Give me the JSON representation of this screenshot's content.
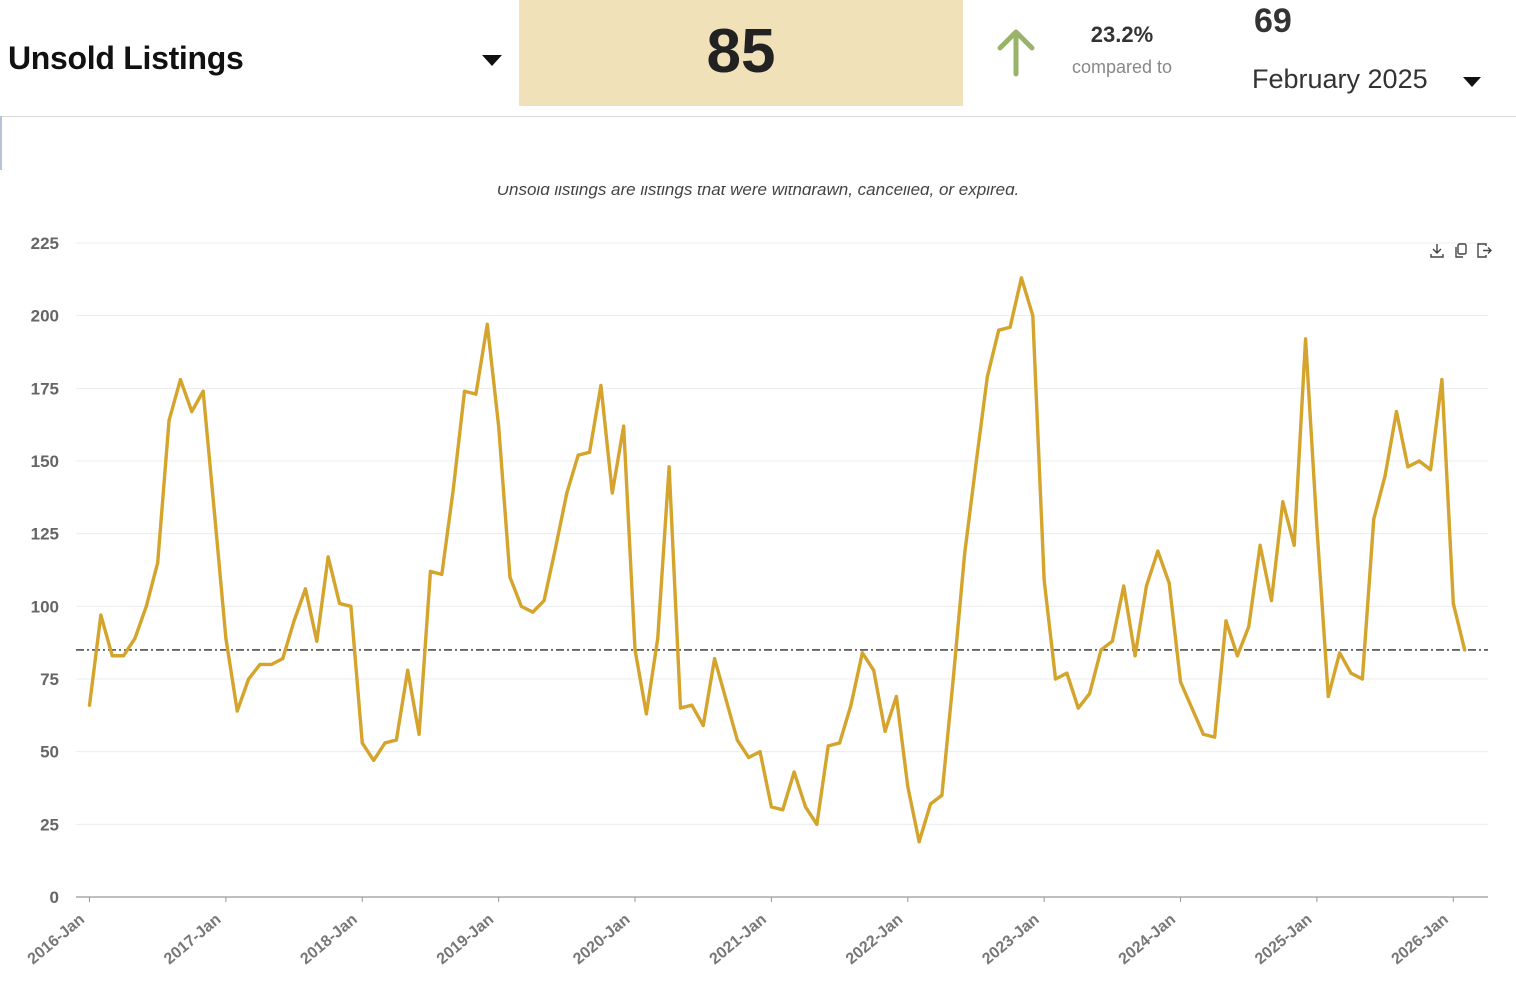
{
  "header": {
    "metric_label": "Unsold Listings",
    "current_value": "85",
    "change_percent": "23.2%",
    "change_label": "compared to",
    "compare_value": "69",
    "compare_period": "February 2025",
    "trend_direction": "up",
    "trend_color": "#99b46a",
    "value_box_color": "#f1e1b8"
  },
  "chart_data": {
    "type": "line",
    "title": "",
    "subtitle": "Unsold listings are listings that were withdrawn, cancelled, or expired.",
    "xlabel": "",
    "ylabel": "",
    "ylim": [
      0,
      225
    ],
    "yticks": [
      0,
      25,
      50,
      75,
      100,
      125,
      150,
      175,
      200,
      225
    ],
    "xtick_labels": [
      "2016-Jan",
      "2017-Jan",
      "2018-Jan",
      "2019-Jan",
      "2020-Jan",
      "2021-Jan",
      "2022-Jan",
      "2023-Jan",
      "2024-Jan",
      "2025-Jan",
      "2026-Jan"
    ],
    "start": "2016-Jan",
    "grid": true,
    "line_color": "#d4a42c",
    "reference_line": {
      "value": 85,
      "style": "dash-dot",
      "color": "#000000"
    },
    "series": [
      {
        "values": [
          66,
          97,
          83,
          83,
          89,
          100,
          115,
          164,
          178,
          167,
          174,
          132,
          89,
          64,
          75,
          80,
          80,
          82,
          95,
          106,
          88,
          117,
          101,
          100,
          53,
          47,
          53,
          54,
          78,
          56,
          112,
          111,
          140,
          174,
          173,
          197,
          162,
          110,
          100,
          98,
          102,
          120,
          139,
          152,
          153,
          176,
          139,
          162,
          85,
          63,
          89,
          148,
          65,
          66,
          59,
          82,
          68,
          54,
          48,
          50,
          31,
          30,
          43,
          31,
          25,
          52,
          53,
          66,
          84,
          78,
          57,
          69,
          38,
          19,
          32,
          35,
          75,
          118,
          149,
          179,
          195,
          196,
          213,
          200,
          109,
          75,
          77,
          65,
          70,
          85,
          88,
          107,
          83,
          107,
          119,
          108,
          74,
          65,
          56,
          55,
          95,
          83,
          93,
          121,
          102,
          136,
          121,
          192,
          127,
          69,
          84,
          77,
          75,
          130,
          145,
          167,
          148,
          150,
          147,
          178,
          101,
          85
        ]
      }
    ]
  },
  "toolbar": {
    "download_icon": "download-icon",
    "copy_icon": "copy-icon",
    "export_icon": "export-icon"
  }
}
